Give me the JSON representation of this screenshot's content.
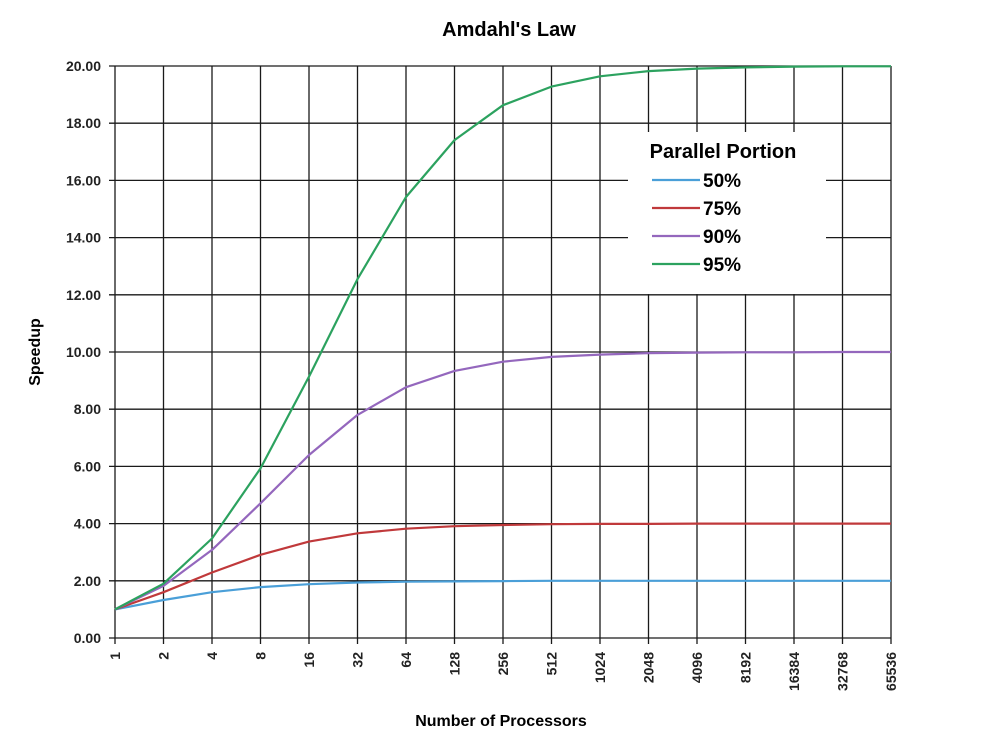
{
  "chart_data": {
    "type": "line",
    "title": "Amdahl's Law",
    "xlabel": "Number of Processors",
    "ylabel": "Speedup",
    "x_scale": "log2",
    "x": [
      1,
      2,
      4,
      8,
      16,
      32,
      64,
      128,
      256,
      512,
      1024,
      2048,
      4096,
      8192,
      16384,
      32768,
      65536
    ],
    "x_tick_labels": [
      "1",
      "2",
      "4",
      "8",
      "16",
      "32",
      "64",
      "128",
      "256",
      "512",
      "1024",
      "2048",
      "4096",
      "8192",
      "16384",
      "32768",
      "65536"
    ],
    "ylim": [
      0,
      20
    ],
    "y_tick_labels": [
      "0.00",
      "2.00",
      "4.00",
      "6.00",
      "8.00",
      "10.00",
      "12.00",
      "14.00",
      "16.00",
      "18.00",
      "20.00"
    ],
    "grid": true,
    "legend": {
      "title": "Parallel Portion",
      "placement": "top-right"
    },
    "series": [
      {
        "name": "50%",
        "color": "#4a9fd8",
        "values": [
          1.0,
          1.33,
          1.6,
          1.78,
          1.88,
          1.94,
          1.97,
          1.98,
          1.99,
          2.0,
          2.0,
          2.0,
          2.0,
          2.0,
          2.0,
          2.0,
          2.0
        ]
      },
      {
        "name": "75%",
        "color": "#c0393b",
        "values": [
          1.0,
          1.6,
          2.29,
          2.91,
          3.37,
          3.66,
          3.82,
          3.91,
          3.95,
          3.98,
          3.99,
          3.99,
          4.0,
          4.0,
          4.0,
          4.0,
          4.0
        ]
      },
      {
        "name": "90%",
        "color": "#9467bd",
        "values": [
          1.0,
          1.82,
          3.08,
          4.71,
          6.4,
          7.8,
          8.77,
          9.34,
          9.66,
          9.83,
          9.91,
          9.96,
          9.98,
          9.99,
          9.99,
          10.0,
          10.0
        ]
      },
      {
        "name": "95%",
        "color": "#2ca25f",
        "values": [
          1.0,
          1.9,
          3.48,
          5.93,
          9.14,
          12.55,
          15.42,
          17.41,
          18.63,
          19.28,
          19.64,
          19.82,
          19.91,
          19.95,
          19.98,
          19.99,
          19.99
        ]
      }
    ]
  }
}
